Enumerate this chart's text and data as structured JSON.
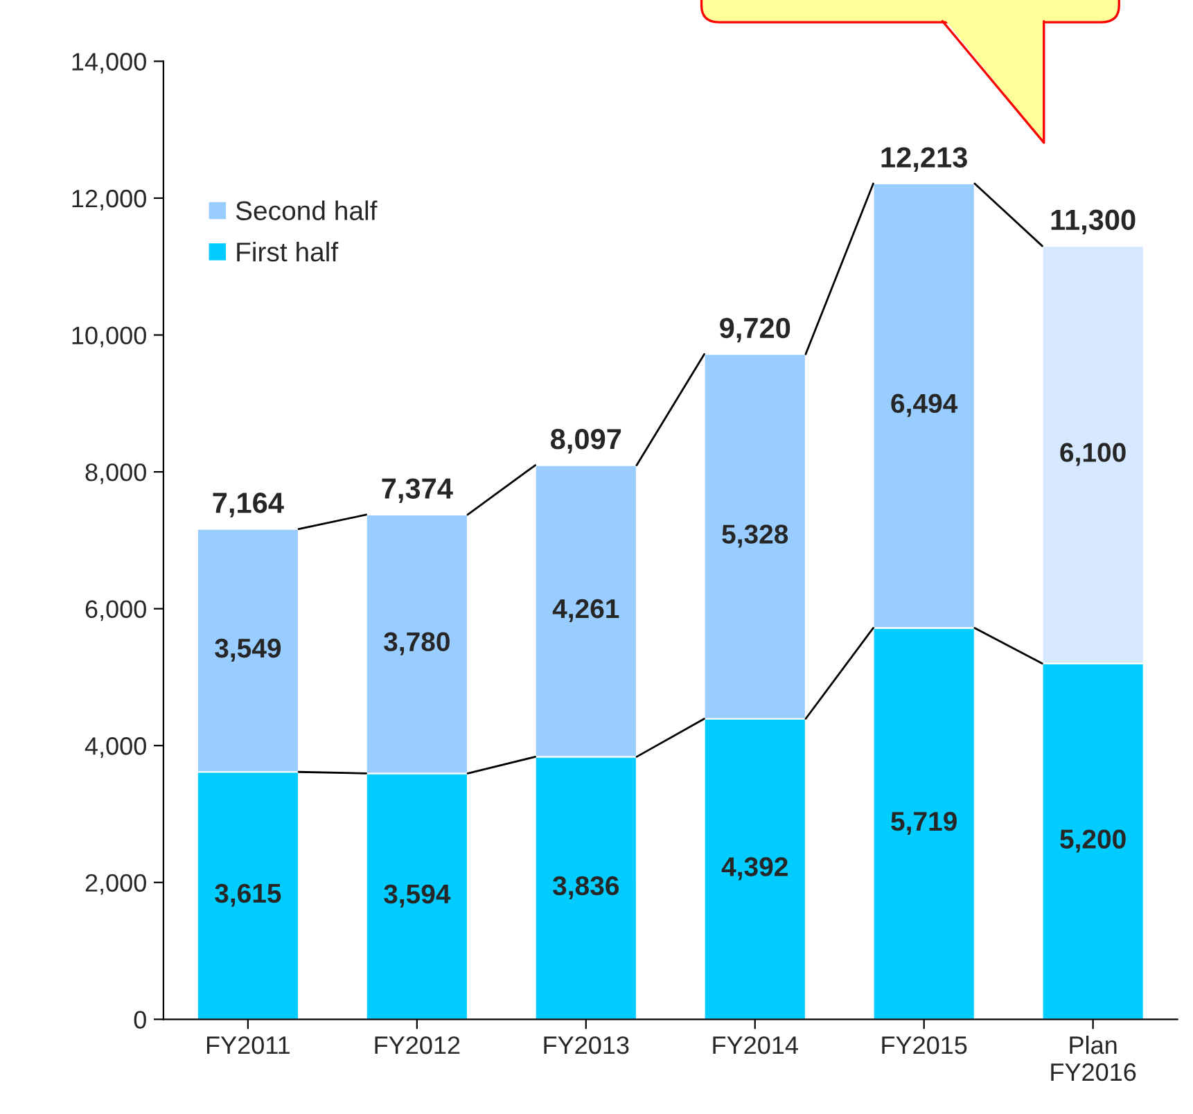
{
  "chart_data": {
    "type": "bar",
    "stacked": true,
    "categories": [
      "FY2011",
      "FY2012",
      "FY2013",
      "FY2014",
      "FY2015",
      "Plan\nFY2016"
    ],
    "series": [
      {
        "name": "First half",
        "color": "#00ccff",
        "values": [
          3615,
          3594,
          3836,
          4392,
          5719,
          5200
        ],
        "value_labels": [
          "3,615",
          "3,594",
          "3,836",
          "4,392",
          "5,719",
          "5,200"
        ]
      },
      {
        "name": "Second half",
        "color": "#99ccff",
        "colors": [
          "#99ccff",
          "#99ccff",
          "#99ccff",
          "#99ccff",
          "#99ccff",
          "#d6e8ff"
        ],
        "values": [
          3549,
          3780,
          4261,
          5328,
          6494,
          6100
        ],
        "value_labels": [
          "3,549",
          "3,780",
          "4,261",
          "5,328",
          "6,494",
          "6,100"
        ]
      }
    ],
    "totals": [
      "7,164",
      "7,374",
      "8,097",
      "9,720",
      "12,213",
      "11,300"
    ],
    "ylim": [
      0,
      14000
    ],
    "yticks": [
      0,
      {
        "value": 2000,
        "label": "2,000"
      },
      {
        "value": 4000,
        "label": "4,000"
      },
      {
        "value": 6000,
        "label": "6,000"
      },
      {
        "value": 8000,
        "label": "8,000"
      },
      {
        "value": 10000,
        "label": "10,000"
      },
      {
        "value": 12000,
        "label": "12,000"
      },
      {
        "value": 14000,
        "label": "14,000"
      }
    ],
    "grid": false,
    "legend": "top left"
  }
}
